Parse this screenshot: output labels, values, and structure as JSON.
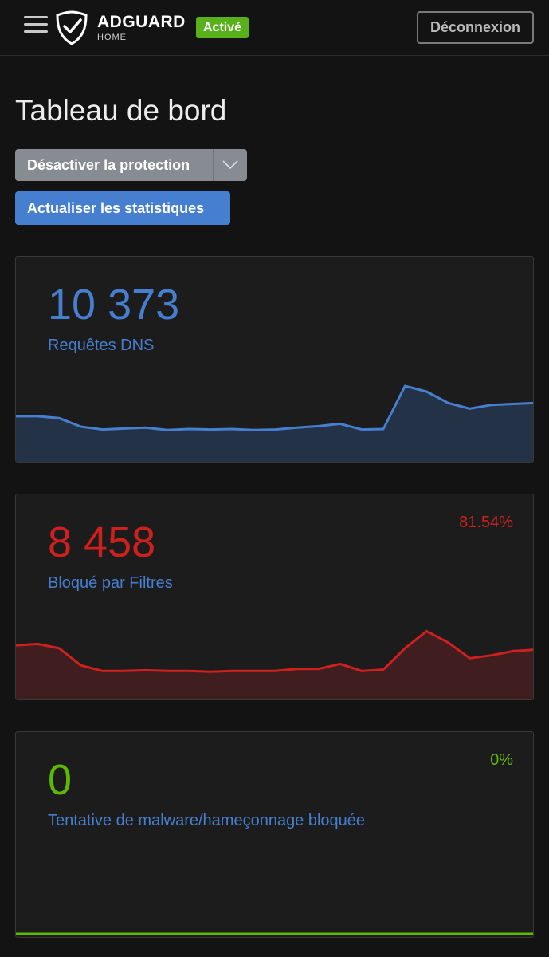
{
  "header": {
    "brand_name": "ADGUARD",
    "brand_sub": "HOME",
    "status_badge": "Activé",
    "logout_label": "Déconnexion"
  },
  "page": {
    "title": "Tableau de bord",
    "disable_protection_label": "Désactiver la protection",
    "refresh_label": "Actualiser les statistiques"
  },
  "stats": {
    "dns_queries": {
      "value": "10 373",
      "label": "Requêtes DNS",
      "color": "#467fcf"
    },
    "blocked_filters": {
      "value": "8 458",
      "label": "Bloqué par Filtres",
      "percent": "81.54%",
      "color": "#cd201f"
    },
    "malware": {
      "value": "0",
      "label": "Tentative de malware/hameçonnage bloquée",
      "percent": "0%",
      "color": "#5eba00"
    }
  },
  "chart_data": [
    {
      "type": "area",
      "title": "Requêtes DNS",
      "series": [
        {
          "name": "Requêtes DNS",
          "values": [
            480,
            480,
            460,
            370,
            340,
            350,
            360,
            335,
            345,
            340,
            345,
            335,
            340,
            360,
            375,
            400,
            340,
            345,
            800,
            740,
            620,
            560,
            600,
            610,
            620
          ]
        }
      ],
      "ylim": [
        0,
        900
      ]
    },
    {
      "type": "area",
      "title": "Bloqué par Filtres",
      "series": [
        {
          "name": "Bloqué par Filtres",
          "values": [
            380,
            390,
            360,
            240,
            200,
            200,
            205,
            200,
            200,
            195,
            200,
            200,
            200,
            215,
            215,
            250,
            200,
            210,
            360,
            480,
            400,
            290,
            310,
            340,
            350
          ]
        }
      ],
      "ylim": [
        0,
        600
      ]
    },
    {
      "type": "area",
      "title": "Tentative de malware/hameçonnage bloquée",
      "series": [
        {
          "name": "Tentative de malware/hameçonnage bloquée",
          "values": [
            0,
            0,
            0,
            0,
            0,
            0,
            0,
            0,
            0,
            0,
            0,
            0,
            0,
            0,
            0,
            0,
            0,
            0,
            0,
            0,
            0,
            0,
            0,
            0,
            0
          ]
        }
      ],
      "ylim": [
        0,
        1
      ]
    }
  ]
}
